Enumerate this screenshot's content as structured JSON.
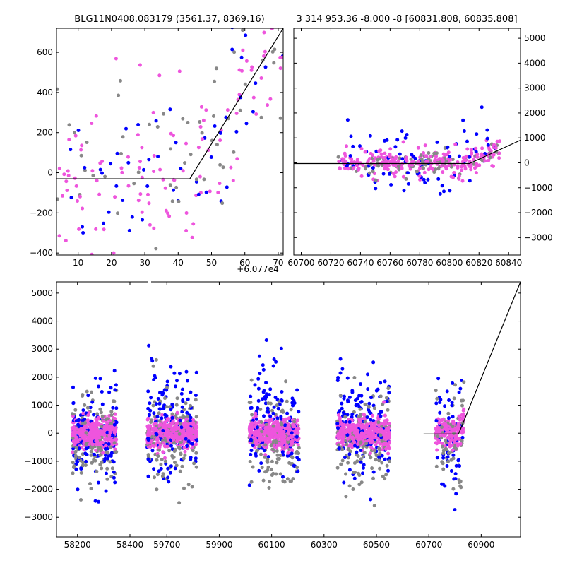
{
  "chart_data": [
    {
      "type": "scatter",
      "title": "BLG11N0408.083179 (3561.37, 8369.16)",
      "xlim": [
        3.5,
        71.5
      ],
      "ylim": [
        -410,
        720
      ],
      "x_ticks": [
        10,
        20,
        30,
        40,
        50,
        60,
        70
      ],
      "y_ticks": [
        -400,
        -200,
        0,
        200,
        400,
        600
      ],
      "x_ticks_labels": [
        "10",
        "20",
        "30",
        "40",
        "50",
        "60",
        "70"
      ],
      "y_ticks_labels": [
        "−400",
        "−200",
        "0",
        "200",
        "400",
        "600"
      ],
      "x_offset_label": "+6.077e4",
      "series": [
        {
          "color": "#0000ff",
          "values_desc": "data points"
        },
        {
          "color": "#ee55dd",
          "values_desc": "data points"
        },
        {
          "color": "#888888",
          "values_desc": "data points"
        }
      ],
      "model_line": [
        [
          3.5,
          -30
        ],
        [
          43.5,
          -30
        ],
        [
          71.5,
          720
        ]
      ]
    },
    {
      "type": "scatter",
      "title": "3 314 953.36 -8.000 -8 [60831.808, 60835.808]",
      "xlim": [
        60695,
        60848
      ],
      "ylim": [
        -3700,
        5400
      ],
      "x_ticks": [
        60700,
        60720,
        60740,
        60760,
        60780,
        60800,
        60820,
        60840
      ],
      "y_ticks": [
        -3000,
        -2000,
        -1000,
        0,
        1000,
        2000,
        3000,
        4000,
        5000
      ],
      "x_ticks_labels": [
        "60700",
        "60720",
        "60740",
        "60760",
        "60780",
        "60800",
        "60820",
        "60840"
      ],
      "y_ticks_labels": [
        "−3000",
        "−2000",
        "−1000",
        "0",
        "1000",
        "2000",
        "3000",
        "4000",
        "5000"
      ],
      "y_axis_side": "right",
      "model_line": [
        [
          60695,
          -30
        ],
        [
          60813.5,
          -30
        ],
        [
          60848,
          910
        ]
      ]
    },
    {
      "type": "scatter",
      "xlim": [
        58120,
        61050
      ],
      "ylim": [
        -3700,
        5400
      ],
      "x_ticks": [
        58200,
        58400,
        59700,
        59900,
        60100,
        60300,
        60500,
        60700,
        60900
      ],
      "y_ticks": [
        -3000,
        -2000,
        -1000,
        0,
        1000,
        2000,
        3000,
        4000,
        5000
      ],
      "x_ticks_labels": [
        "58200",
        "58400",
        "59700",
        "59900",
        "60100",
        "60300",
        "60500",
        "60700",
        "60900"
      ],
      "y_ticks_labels": [
        "−3000",
        "−2000",
        "−1000",
        "0",
        "1000",
        "2000",
        "3000",
        "4000",
        "5000"
      ],
      "broken_x_axis": "gap between 58400 and 59700",
      "seasons": [
        58265,
        59720,
        60110,
        60450,
        60800
      ],
      "model_line": [
        [
          60680,
          -30
        ],
        [
          60813.5,
          -30
        ],
        [
          61050,
          5400
        ]
      ]
    }
  ]
}
